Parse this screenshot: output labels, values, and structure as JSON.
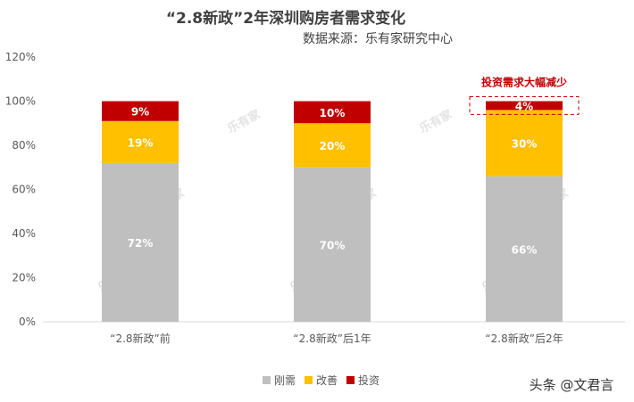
{
  "chart_data": {
    "type": "bar",
    "stacked": true,
    "title": "“2.8新政”2年深圳购房者需求变化",
    "source_note": "数据来源：乐有家研究中心",
    "categories": [
      "“2.8新政”前",
      "“2.8新政”后1年",
      "“2.8新政”后2年"
    ],
    "series": [
      {
        "name": "刚需",
        "values": [
          72,
          70,
          66
        ],
        "labels": [
          "72%",
          "70%",
          "66%"
        ],
        "color": "#bfbfbf"
      },
      {
        "name": "改善",
        "values": [
          19,
          20,
          30
        ],
        "labels": [
          "19%",
          "20%",
          "30%"
        ],
        "color": "#ffc000"
      },
      {
        "name": "投资",
        "values": [
          9,
          10,
          4
        ],
        "labels": [
          "9%",
          "10%",
          "4%"
        ],
        "color": "#c00000"
      }
    ],
    "ylim": [
      0,
      120
    ],
    "yticks": [
      0,
      20,
      40,
      60,
      80,
      100,
      120
    ],
    "ytick_labels": [
      "0%",
      "20%",
      "40%",
      "60%",
      "80%",
      "100%",
      "120%"
    ],
    "legend_position": "bottom",
    "grid": false,
    "annotation": {
      "text": "投资需求大幅减少",
      "category_index": 2,
      "color": "#c00000"
    }
  },
  "watermark_text": "乐有家",
  "credit": "头条 @文君言"
}
